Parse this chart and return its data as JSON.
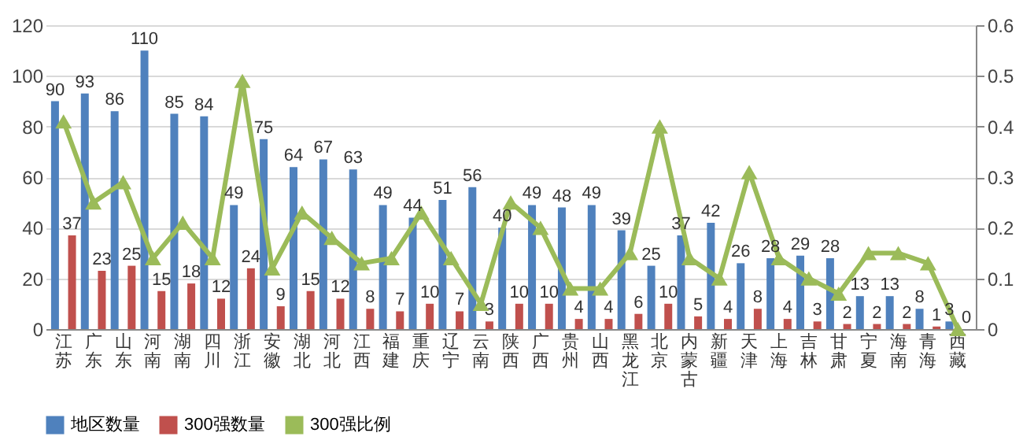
{
  "chart_data": {
    "type": "bar",
    "categories": [
      "江苏",
      "广东",
      "山东",
      "河南",
      "湖南",
      "四川",
      "浙江",
      "安徽",
      "湖北",
      "河北",
      "江西",
      "福建",
      "重庆",
      "辽宁",
      "云南",
      "陕西",
      "广西",
      "贵州",
      "山西",
      "黑龙江",
      "北京",
      "内蒙古",
      "新疆",
      "天津",
      "上海",
      "吉林",
      "甘肃",
      "宁夏",
      "海南",
      "青海",
      "西藏"
    ],
    "series": [
      {
        "name": "地区数量",
        "color": "#4f81bd",
        "values": [
          90,
          93,
          86,
          110,
          85,
          84,
          49,
          75,
          64,
          67,
          63,
          49,
          44,
          51,
          56,
          40,
          49,
          48,
          49,
          39,
          25,
          37,
          42,
          26,
          28,
          29,
          28,
          13,
          13,
          8,
          3
        ],
        "value_labels": [
          "90",
          "93",
          "86",
          "110",
          "85",
          "84",
          "49",
          "75",
          "64",
          "67",
          "63",
          "49",
          "44",
          "51",
          "56",
          "40",
          "49",
          "48",
          "49",
          "39",
          "25",
          "37",
          "42",
          "26",
          "28",
          "29",
          "28",
          "13",
          "13",
          "8",
          "3"
        ]
      },
      {
        "name": "300强数量",
        "color": "#c0504d",
        "values": [
          37,
          23,
          25,
          15,
          18,
          12,
          24,
          9,
          15,
          12,
          8,
          7,
          10,
          7,
          3,
          10,
          10,
          4,
          4,
          6,
          10,
          5,
          4,
          8,
          4,
          3,
          2,
          2,
          2,
          1,
          0
        ],
        "value_labels": [
          "37",
          "23",
          "25",
          "15",
          "18",
          "12",
          "24",
          "9",
          "15",
          "12",
          "8",
          "7",
          "10",
          "7",
          "3",
          "10",
          "10",
          "4",
          "4",
          "6",
          "10",
          "5",
          "4",
          "8",
          "4",
          "3",
          "2",
          "2",
          "2",
          "1",
          "0"
        ]
      },
      {
        "name": "300强比例",
        "color": "#9bbb59",
        "type": "line",
        "axis": "y2",
        "values": [
          0.41,
          0.25,
          0.29,
          0.14,
          0.21,
          0.14,
          0.49,
          0.12,
          0.23,
          0.18,
          0.13,
          0.14,
          0.23,
          0.14,
          0.05,
          0.25,
          0.2,
          0.08,
          0.08,
          0.15,
          0.4,
          0.14,
          0.1,
          0.31,
          0.14,
          0.1,
          0.07,
          0.15,
          0.15,
          0.13,
          0
        ]
      }
    ],
    "ylim": [
      0,
      120
    ],
    "yticks": [
      0,
      20,
      40,
      60,
      80,
      100,
      120
    ],
    "y2lim": [
      0,
      0.6
    ],
    "y2ticks": [
      0,
      0.1,
      0.2,
      0.3,
      0.4,
      0.5,
      0.6
    ],
    "grid": "y",
    "legend": "bottom",
    "marker": "triangle",
    "line_style": "solid"
  }
}
